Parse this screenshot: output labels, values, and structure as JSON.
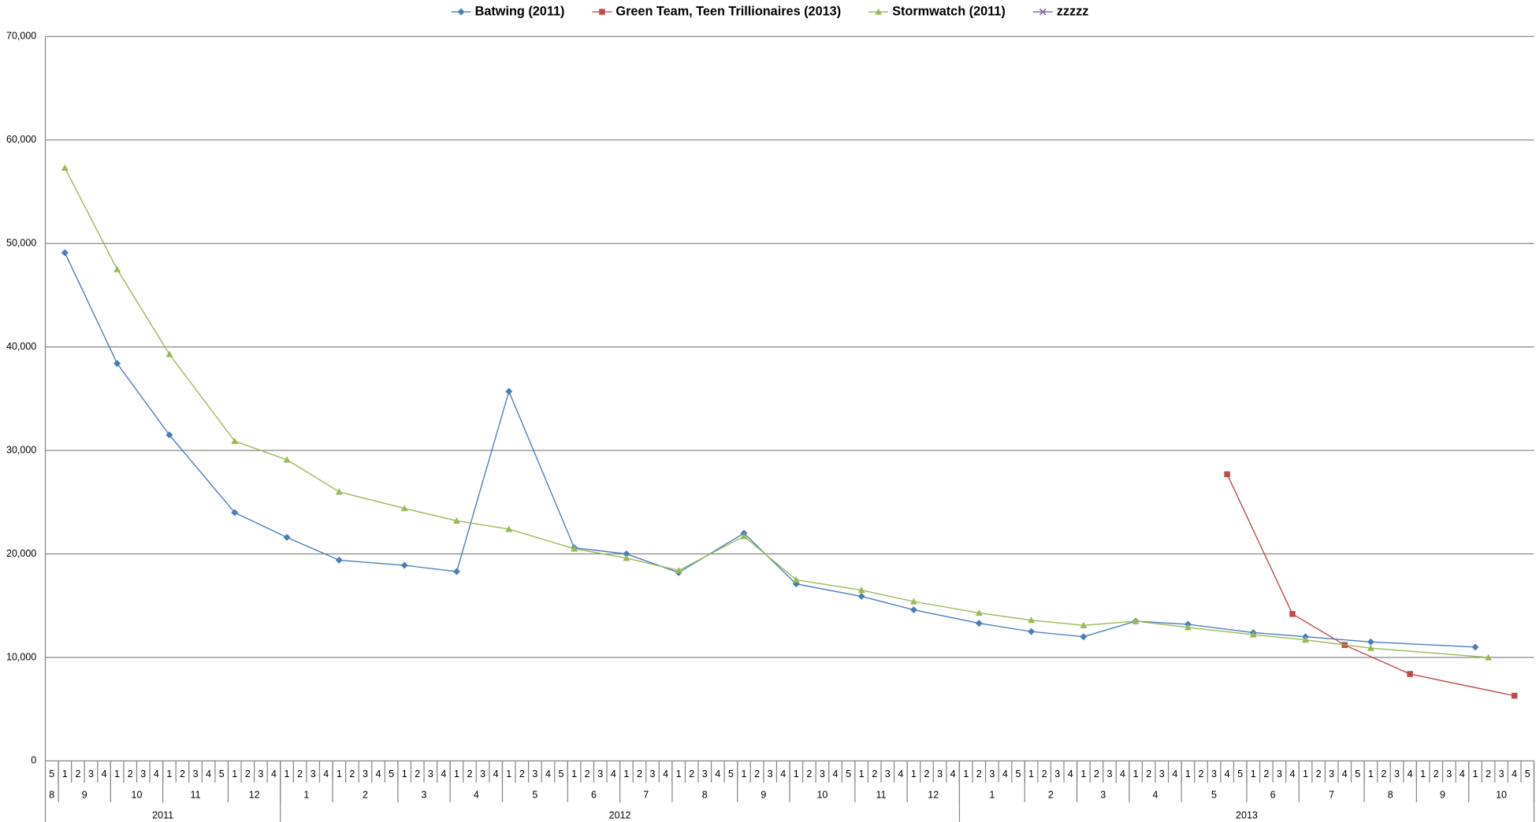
{
  "chart_data": {
    "type": "line",
    "ylim": [
      0,
      70000
    ],
    "yticks": [
      0,
      {
        "value": 10000,
        "label": "10,000"
      },
      {
        "value": 20000,
        "label": "20,000"
      },
      {
        "value": 30000,
        "label": "30,000"
      },
      {
        "value": 40000,
        "label": "40,000"
      },
      {
        "value": 50000,
        "label": "50,000"
      },
      {
        "value": 60000,
        "label": "60,000"
      },
      {
        "value": 70000,
        "label": "70,000"
      }
    ],
    "grid": true,
    "legend": "top",
    "category_groups": [
      {
        "label": "2011",
        "months": [
          {
            "label": "8",
            "weeks": [
              5
            ]
          },
          {
            "label": "9",
            "weeks": [
              1,
              2,
              3,
              4
            ]
          },
          {
            "label": "10",
            "weeks": [
              1,
              2,
              3,
              4
            ]
          },
          {
            "label": "11",
            "weeks": [
              1,
              2,
              3,
              4,
              5
            ]
          },
          {
            "label": "12",
            "weeks": [
              1,
              2,
              3,
              4
            ]
          }
        ]
      },
      {
        "label": "2012",
        "months": [
          {
            "label": "1",
            "weeks": [
              1,
              2,
              3,
              4
            ]
          },
          {
            "label": "2",
            "weeks": [
              1,
              2,
              3,
              4,
              5
            ]
          },
          {
            "label": "3",
            "weeks": [
              1,
              2,
              3,
              4
            ]
          },
          {
            "label": "4",
            "weeks": [
              1,
              2,
              3,
              4
            ]
          },
          {
            "label": "5",
            "weeks": [
              1,
              2,
              3,
              4,
              5
            ]
          },
          {
            "label": "6",
            "weeks": [
              1,
              2,
              3,
              4
            ]
          },
          {
            "label": "7",
            "weeks": [
              1,
              2,
              3,
              4
            ]
          },
          {
            "label": "8",
            "weeks": [
              1,
              2,
              3,
              4,
              5
            ]
          },
          {
            "label": "9",
            "weeks": [
              1,
              2,
              3,
              4
            ]
          },
          {
            "label": "10",
            "weeks": [
              1,
              2,
              3,
              4,
              5
            ]
          },
          {
            "label": "11",
            "weeks": [
              1,
              2,
              3,
              4
            ]
          },
          {
            "label": "12",
            "weeks": [
              1,
              2,
              3,
              4
            ]
          }
        ]
      },
      {
        "label": "2013",
        "months": [
          {
            "label": "1",
            "weeks": [
              1,
              2,
              3,
              4,
              5
            ]
          },
          {
            "label": "2",
            "weeks": [
              1,
              2,
              3,
              4
            ]
          },
          {
            "label": "3",
            "weeks": [
              1,
              2,
              3,
              4
            ]
          },
          {
            "label": "4",
            "weeks": [
              1,
              2,
              3,
              4
            ]
          },
          {
            "label": "5",
            "weeks": [
              1,
              2,
              3,
              4,
              5
            ]
          },
          {
            "label": "6",
            "weeks": [
              1,
              2,
              3,
              4
            ]
          },
          {
            "label": "7",
            "weeks": [
              1,
              2,
              3,
              4,
              5
            ]
          },
          {
            "label": "8",
            "weeks": [
              1,
              2,
              3,
              4
            ]
          },
          {
            "label": "9",
            "weeks": [
              1,
              2,
              3,
              4
            ]
          },
          {
            "label": "10",
            "weeks": [
              1,
              2,
              3,
              4,
              5
            ]
          }
        ]
      }
    ],
    "series": [
      {
        "name": "Batwing (2011)",
        "color": "#4a7ebb",
        "marker": "diamond",
        "values": [
          null,
          49100,
          null,
          null,
          null,
          38400,
          null,
          null,
          null,
          31500,
          null,
          null,
          null,
          null,
          24000,
          null,
          null,
          null,
          21600,
          null,
          null,
          null,
          19400,
          null,
          null,
          null,
          null,
          18900,
          null,
          null,
          null,
          18300,
          null,
          null,
          null,
          35700,
          null,
          null,
          null,
          null,
          20600,
          null,
          null,
          null,
          20000,
          null,
          null,
          null,
          18200,
          null,
          null,
          null,
          null,
          22000,
          null,
          null,
          null,
          17100,
          null,
          null,
          null,
          null,
          15900,
          null,
          null,
          null,
          14600,
          null,
          null,
          null,
          null,
          13300,
          null,
          null,
          null,
          12500,
          null,
          null,
          null,
          12000,
          null,
          null,
          null,
          13500,
          null,
          null,
          null,
          13200,
          null,
          null,
          null,
          null,
          12400,
          null,
          null,
          null,
          12000,
          null,
          null,
          null,
          null,
          11500,
          null,
          null,
          null,
          null,
          null,
          null,
          null,
          11000,
          null,
          null,
          null,
          null
        ]
      },
      {
        "name": "Green Team, Teen Trillionaires (2013)",
        "color": "#be4b48",
        "marker": "square",
        "values": [
          null,
          null,
          null,
          null,
          null,
          null,
          null,
          null,
          null,
          null,
          null,
          null,
          null,
          null,
          null,
          null,
          null,
          null,
          null,
          null,
          null,
          null,
          null,
          null,
          null,
          null,
          null,
          null,
          null,
          null,
          null,
          null,
          null,
          null,
          null,
          null,
          null,
          null,
          null,
          null,
          null,
          null,
          null,
          null,
          null,
          null,
          null,
          null,
          null,
          null,
          null,
          null,
          null,
          null,
          null,
          null,
          null,
          null,
          null,
          null,
          null,
          null,
          null,
          null,
          null,
          null,
          null,
          null,
          null,
          null,
          null,
          null,
          null,
          null,
          null,
          null,
          null,
          null,
          null,
          null,
          null,
          null,
          null,
          null,
          null,
          null,
          null,
          null,
          null,
          null,
          27700,
          null,
          null,
          null,
          null,
          14200,
          null,
          null,
          null,
          11200,
          null,
          null,
          null,
          null,
          8400,
          null,
          null,
          null,
          null,
          null,
          null,
          null,
          6300,
          null
        ]
      },
      {
        "name": "Stormwatch (2011)",
        "color": "#98b954",
        "marker": "triangle",
        "values": [
          null,
          57300,
          null,
          null,
          null,
          47500,
          null,
          null,
          null,
          39300,
          null,
          null,
          null,
          null,
          30900,
          null,
          null,
          null,
          29100,
          null,
          null,
          null,
          26000,
          null,
          null,
          null,
          null,
          24400,
          null,
          null,
          null,
          23200,
          null,
          null,
          null,
          22400,
          null,
          null,
          null,
          null,
          20500,
          null,
          null,
          null,
          19600,
          null,
          null,
          null,
          18400,
          null,
          null,
          null,
          null,
          21700,
          null,
          null,
          null,
          17500,
          null,
          null,
          null,
          null,
          16500,
          null,
          null,
          null,
          15400,
          null,
          null,
          null,
          null,
          14300,
          null,
          null,
          null,
          13600,
          null,
          null,
          null,
          13100,
          null,
          null,
          null,
          13500,
          null,
          null,
          null,
          12900,
          null,
          null,
          null,
          null,
          12200,
          null,
          null,
          null,
          11700,
          null,
          null,
          null,
          null,
          10900,
          null,
          null,
          null,
          null,
          null,
          null,
          null,
          null,
          10000,
          null,
          null,
          null
        ]
      },
      {
        "name": "zzzzz",
        "color": "#7d60a0",
        "marker": "x",
        "values": [
          null,
          null,
          null,
          null,
          null,
          null,
          null,
          null,
          null,
          null,
          null,
          null,
          null,
          null,
          null,
          null,
          null,
          null,
          null,
          null,
          null,
          null,
          null,
          null,
          null,
          null,
          null,
          null,
          null,
          null,
          null,
          null,
          null,
          null,
          null,
          null,
          null,
          null,
          null,
          null,
          null,
          null,
          null,
          null,
          null,
          null,
          null,
          null,
          null,
          null,
          null,
          null,
          null,
          null,
          null,
          null,
          null,
          null,
          null,
          null,
          null,
          null,
          null,
          null,
          null,
          null,
          null,
          null,
          null,
          null,
          null,
          null,
          null,
          null,
          null,
          null,
          null,
          null,
          null,
          null,
          null,
          null,
          null,
          null,
          null,
          null,
          null,
          null,
          null,
          null,
          null,
          null,
          null,
          null,
          null,
          null,
          null,
          null,
          null,
          null,
          null,
          null,
          null,
          null,
          null,
          null,
          null,
          null,
          null,
          null,
          null,
          null,
          null,
          null
        ]
      }
    ]
  }
}
